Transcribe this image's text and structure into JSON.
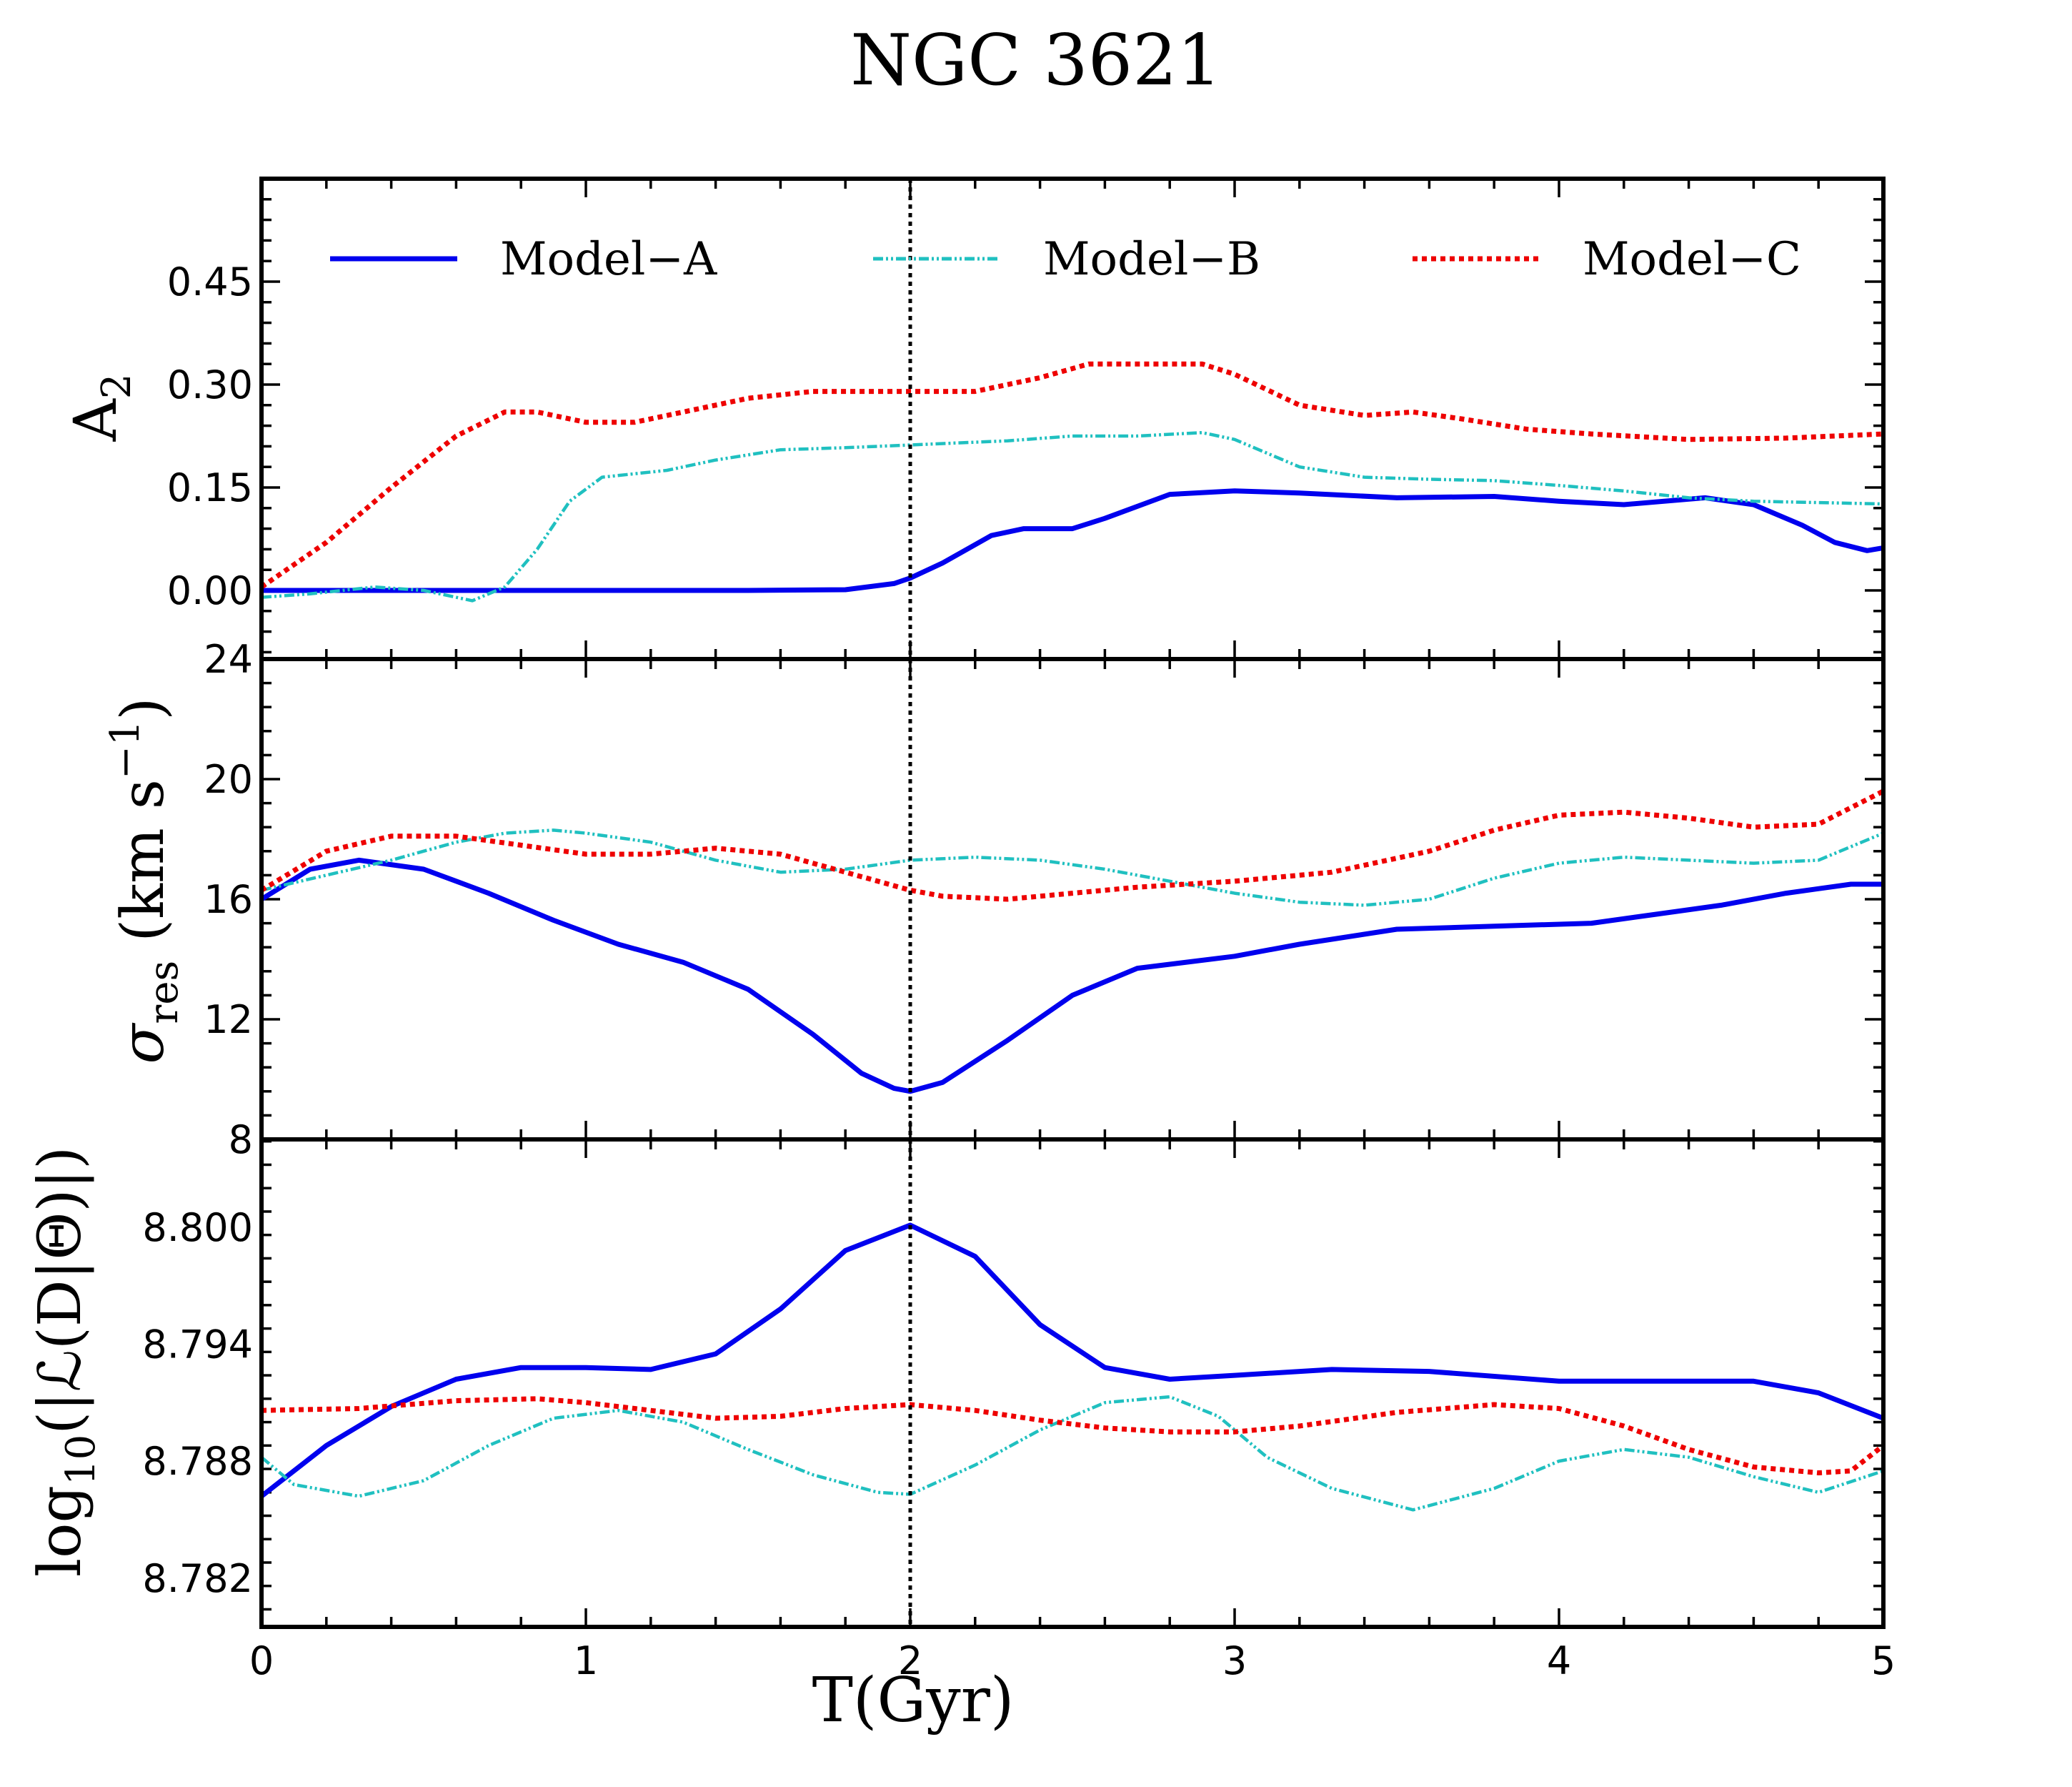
{
  "chart_data": {
    "title": "NGC 3621",
    "type": "line",
    "xlabel": "T(Gyr)",
    "xlim": [
      0,
      5
    ],
    "xticks": [
      "0",
      "1",
      "2",
      "3",
      "4",
      "5"
    ],
    "xtick_values": [
      0,
      1,
      2,
      3,
      4,
      5
    ],
    "vline_x": 2,
    "grid": false,
    "legend": {
      "placement": "top",
      "entries": [
        {
          "name": "Model−A",
          "color": "#0000ee",
          "style": "solid"
        },
        {
          "name": "Model−B",
          "color": "#20c0c0",
          "style": "dashdot"
        },
        {
          "name": "Model−C",
          "color": "#ee0000",
          "style": "dotted"
        }
      ]
    },
    "panels": [
      {
        "id": "a2",
        "ylabel_main": "A",
        "ylabel_sub": "2",
        "ylim": [
          -0.1,
          0.6
        ],
        "yticks": [
          "0.00",
          "0.15",
          "0.30",
          "0.45"
        ],
        "ytick_values": [
          0.0,
          0.15,
          0.3,
          0.45
        ],
        "series": [
          {
            "name": "Model−A",
            "color": "#0000ee",
            "style": "solid",
            "x": [
              0,
              0.5,
              1.0,
              1.5,
              1.8,
              1.95,
              2.0,
              2.1,
              2.25,
              2.35,
              2.5,
              2.6,
              2.8,
              3.0,
              3.2,
              3.5,
              3.8,
              4.0,
              4.2,
              4.45,
              4.6,
              4.75,
              4.85,
              4.95,
              5.0
            ],
            "y": [
              0,
              0,
              0,
              0,
              0.001,
              0.01,
              0.018,
              0.04,
              0.08,
              0.09,
              0.09,
              0.105,
              0.14,
              0.145,
              0.142,
              0.135,
              0.137,
              0.13,
              0.125,
              0.135,
              0.125,
              0.095,
              0.07,
              0.058,
              0.062
            ]
          },
          {
            "name": "Model−B",
            "color": "#20c0c0",
            "style": "dashdot",
            "x": [
              0,
              0.15,
              0.35,
              0.5,
              0.65,
              0.75,
              0.85,
              0.95,
              1.05,
              1.25,
              1.4,
              1.6,
              1.8,
              2.0,
              2.3,
              2.5,
              2.7,
              2.9,
              3.0,
              3.2,
              3.4,
              3.6,
              3.8,
              4.0,
              4.2,
              4.4,
              4.6,
              4.8,
              5.0
            ],
            "y": [
              -0.01,
              -0.005,
              0.005,
              0.0,
              -0.015,
              0.005,
              0.06,
              0.13,
              0.165,
              0.175,
              0.19,
              0.205,
              0.208,
              0.212,
              0.218,
              0.225,
              0.225,
              0.23,
              0.22,
              0.18,
              0.165,
              0.162,
              0.16,
              0.153,
              0.145,
              0.135,
              0.13,
              0.128,
              0.126
            ]
          },
          {
            "name": "Model−C",
            "color": "#ee0000",
            "style": "dotted",
            "x": [
              0,
              0.2,
              0.4,
              0.6,
              0.75,
              0.85,
              1.0,
              1.15,
              1.3,
              1.5,
              1.7,
              1.9,
              2.0,
              2.2,
              2.4,
              2.55,
              2.7,
              2.9,
              3.0,
              3.2,
              3.4,
              3.55,
              3.7,
              3.9,
              4.1,
              4.4,
              4.7,
              5.0
            ],
            "y": [
              0.005,
              0.07,
              0.15,
              0.225,
              0.26,
              0.26,
              0.245,
              0.245,
              0.26,
              0.28,
              0.29,
              0.29,
              0.29,
              0.29,
              0.31,
              0.33,
              0.33,
              0.33,
              0.315,
              0.27,
              0.255,
              0.26,
              0.25,
              0.235,
              0.228,
              0.22,
              0.222,
              0.228
            ]
          }
        ]
      },
      {
        "id": "sigma",
        "ylabel_main": "σ",
        "ylabel_sub": "res",
        "ylabel_unit": "(km s",
        "ylabel_sup": "−1",
        "ylabel_close": ")",
        "ylim": [
          8,
          24
        ],
        "yticks": [
          "8",
          "12",
          "16",
          "20",
          "24"
        ],
        "ytick_values": [
          8,
          12,
          16,
          20,
          24
        ],
        "series": [
          {
            "name": "Model−A",
            "color": "#0000ee",
            "style": "solid",
            "x": [
              0,
              0.15,
              0.3,
              0.5,
              0.7,
              0.9,
              1.1,
              1.3,
              1.5,
              1.7,
              1.85,
              1.95,
              2.0,
              2.1,
              2.3,
              2.5,
              2.7,
              3.0,
              3.2,
              3.5,
              3.8,
              4.1,
              4.3,
              4.5,
              4.7,
              4.9,
              5.0
            ],
            "y": [
              16.0,
              17.0,
              17.3,
              17.0,
              16.2,
              15.3,
              14.5,
              13.9,
              13.0,
              11.5,
              10.2,
              9.7,
              9.6,
              9.9,
              11.3,
              12.8,
              13.7,
              14.1,
              14.5,
              15.0,
              15.1,
              15.2,
              15.5,
              15.8,
              16.2,
              16.5,
              16.5
            ]
          },
          {
            "name": "Model−B",
            "color": "#20c0c0",
            "style": "dashdot",
            "x": [
              0,
              0.2,
              0.4,
              0.6,
              0.75,
              0.9,
              1.0,
              1.2,
              1.4,
              1.6,
              1.8,
              2.0,
              2.2,
              2.4,
              2.6,
              2.8,
              3.0,
              3.2,
              3.4,
              3.6,
              3.8,
              4.0,
              4.2,
              4.4,
              4.6,
              4.8,
              5.0
            ],
            "y": [
              16.3,
              16.8,
              17.3,
              17.9,
              18.2,
              18.3,
              18.2,
              17.9,
              17.3,
              16.9,
              17.0,
              17.3,
              17.4,
              17.3,
              17.0,
              16.6,
              16.2,
              15.9,
              15.8,
              16.0,
              16.7,
              17.2,
              17.4,
              17.3,
              17.2,
              17.3,
              18.2
            ]
          },
          {
            "name": "Model−C",
            "color": "#ee0000",
            "style": "dotted",
            "x": [
              0,
              0.2,
              0.4,
              0.6,
              0.8,
              1.0,
              1.2,
              1.4,
              1.6,
              1.8,
              2.0,
              2.1,
              2.3,
              2.5,
              2.7,
              3.0,
              3.3,
              3.6,
              3.8,
              4.0,
              4.2,
              4.4,
              4.6,
              4.8,
              5.0
            ],
            "y": [
              16.3,
              17.6,
              18.1,
              18.1,
              17.8,
              17.5,
              17.5,
              17.7,
              17.5,
              16.9,
              16.3,
              16.1,
              16.0,
              16.2,
              16.4,
              16.6,
              16.9,
              17.6,
              18.3,
              18.8,
              18.9,
              18.7,
              18.4,
              18.5,
              19.6
            ]
          }
        ]
      },
      {
        "id": "logL",
        "ylabel_main": "log",
        "ylabel_sub": "10",
        "ylabel_rest": "(|ℒ(D|Θ)|)",
        "ylim": [
          8.7795,
          8.8045
        ],
        "yticks": [
          "8.782",
          "8.788",
          "8.794",
          "8.800"
        ],
        "ytick_values": [
          8.782,
          8.788,
          8.794,
          8.8
        ],
        "series": [
          {
            "name": "Model−A",
            "color": "#0000ee",
            "style": "solid",
            "x": [
              0,
              0.2,
              0.4,
              0.6,
              0.8,
              1.0,
              1.2,
              1.4,
              1.6,
              1.8,
              2.0,
              2.2,
              2.4,
              2.6,
              2.8,
              3.0,
              3.3,
              3.6,
              4.0,
              4.3,
              4.6,
              4.8,
              5.0
            ],
            "y": [
              8.7862,
              8.7888,
              8.7908,
              8.7922,
              8.7928,
              8.7928,
              8.7927,
              8.7935,
              8.7958,
              8.7988,
              8.8001,
              8.7985,
              8.795,
              8.7928,
              8.7922,
              8.7924,
              8.7927,
              8.7926,
              8.7921,
              8.7921,
              8.7921,
              8.7915,
              8.7902
            ]
          },
          {
            "name": "Model−B",
            "color": "#20c0c0",
            "style": "dashdot",
            "x": [
              0,
              0.1,
              0.3,
              0.5,
              0.7,
              0.9,
              1.1,
              1.3,
              1.5,
              1.7,
              1.9,
              2.0,
              2.2,
              2.4,
              2.6,
              2.8,
              2.95,
              3.1,
              3.3,
              3.55,
              3.8,
              4.0,
              4.2,
              4.4,
              4.6,
              4.8,
              5.0
            ],
            "y": [
              8.7882,
              8.7868,
              8.7862,
              8.787,
              8.7888,
              8.7902,
              8.7906,
              8.79,
              8.7886,
              8.7873,
              8.7864,
              8.7863,
              8.7878,
              8.7896,
              8.791,
              8.7913,
              8.7903,
              8.7882,
              8.7866,
              8.7855,
              8.7866,
              8.788,
              8.7886,
              8.7882,
              8.7872,
              8.7864,
              8.7875
            ]
          },
          {
            "name": "Model−C",
            "color": "#ee0000",
            "style": "dotted",
            "x": [
              0,
              0.3,
              0.6,
              0.85,
              1.0,
              1.2,
              1.4,
              1.6,
              1.8,
              2.0,
              2.2,
              2.4,
              2.6,
              2.8,
              3.0,
              3.2,
              3.5,
              3.8,
              4.0,
              4.2,
              4.4,
              4.6,
              4.8,
              4.9,
              5.0
            ],
            "y": [
              8.7906,
              8.7907,
              8.7911,
              8.7912,
              8.791,
              8.7906,
              8.7902,
              8.7903,
              8.7907,
              8.7909,
              8.7906,
              8.7901,
              8.7897,
              8.7895,
              8.7895,
              8.7898,
              8.7905,
              8.7909,
              8.7907,
              8.7898,
              8.7886,
              8.7877,
              8.7874,
              8.7875,
              8.7888
            ]
          }
        ]
      }
    ]
  }
}
